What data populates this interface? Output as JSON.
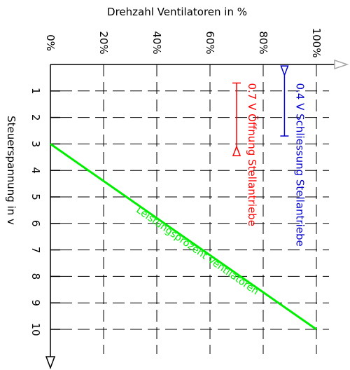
{
  "chart_data": {
    "type": "line",
    "title": "",
    "xlabel": "Drehzahl Ventilatoren in %",
    "ylabel": "Steuerspannung in v",
    "x_axis": {
      "ticks": [
        0,
        20,
        40,
        60,
        80,
        100
      ],
      "tick_labels": [
        "0%",
        "20%",
        "40%",
        "60%",
        "80%",
        "100%"
      ],
      "range": [
        0,
        100
      ]
    },
    "y_axis": {
      "ticks": [
        1,
        2,
        3,
        4,
        5,
        6,
        7,
        8,
        9,
        10
      ],
      "tick_labels": [
        "1",
        "2",
        "3",
        "4",
        "5",
        "6",
        "7",
        "8",
        "9",
        "10"
      ],
      "range": [
        0,
        10
      ],
      "direction": "down"
    },
    "grid": true,
    "series": [
      {
        "name": "Leistungsprozent Ventilatoren",
        "color": "#00ee00",
        "points": [
          [
            0,
            3
          ],
          [
            100,
            10
          ]
        ]
      }
    ],
    "annotations": [
      {
        "text": "0.7 V Öffnung Stellantriebe",
        "color": "#ff0000",
        "x": 70,
        "y_from": 0.7,
        "y_to": 3.1,
        "arrow": "down"
      },
      {
        "text": "0.4 V Schliessung Stellantriebe",
        "color": "#0000cc",
        "x": 88,
        "y_from": 2.7,
        "y_to": 0.4,
        "arrow": "up"
      }
    ]
  }
}
